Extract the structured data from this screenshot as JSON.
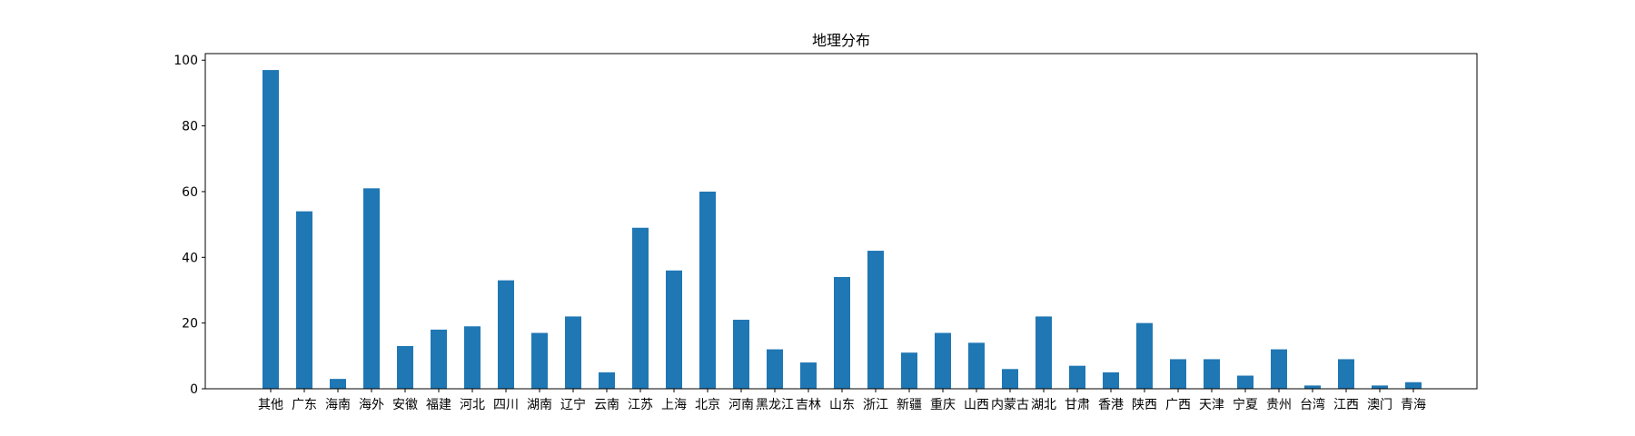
{
  "chart_data": {
    "type": "bar",
    "title": "地理分布",
    "xlabel": "",
    "ylabel": "",
    "ylim": [
      0,
      102
    ],
    "yticks": [
      0,
      20,
      40,
      60,
      80,
      100
    ],
    "grid": false,
    "bar_color": "#1f77b4",
    "categories": [
      "其他",
      "广东",
      "海南",
      "海外",
      "安徽",
      "福建",
      "河北",
      "四川",
      "湖南",
      "辽宁",
      "云南",
      "江苏",
      "上海",
      "北京",
      "河南",
      "黑龙江",
      "吉林",
      "山东",
      "浙江",
      "新疆",
      "重庆",
      "山西",
      "内蒙古",
      "湖北",
      "甘肃",
      "香港",
      "陕西",
      "广西",
      "天津",
      "宁夏",
      "贵州",
      "台湾",
      "江西",
      "澳门",
      "青海"
    ],
    "values": [
      97,
      54,
      3,
      61,
      13,
      18,
      19,
      33,
      17,
      22,
      5,
      49,
      36,
      60,
      21,
      12,
      8,
      34,
      42,
      11,
      17,
      14,
      6,
      22,
      7,
      5,
      20,
      9,
      9,
      4,
      12,
      1,
      9,
      1,
      2
    ]
  }
}
